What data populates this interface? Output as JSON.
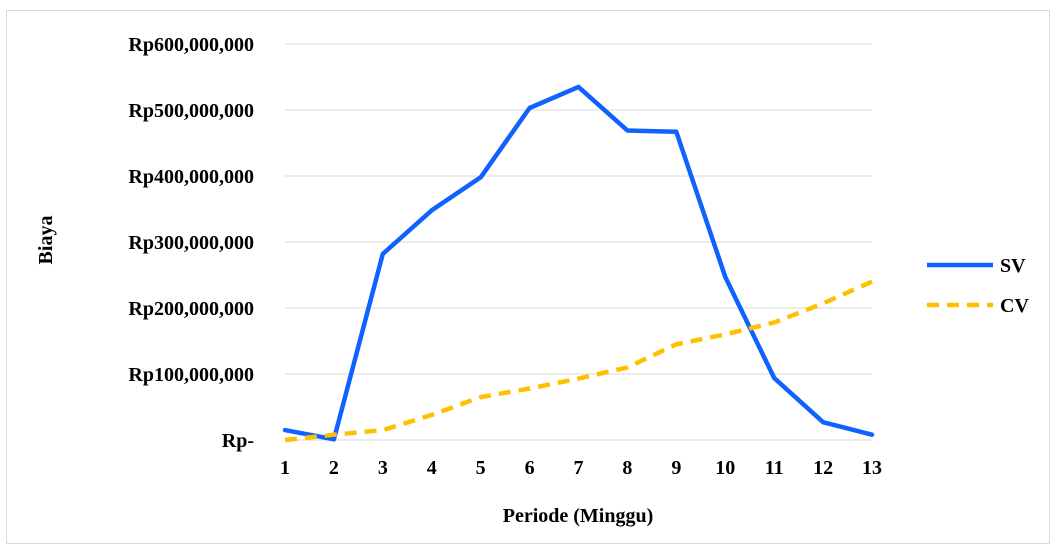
{
  "chart_data": {
    "type": "line",
    "title": "",
    "xlabel": "Periode (Minggu)",
    "ylabel": "Biaya",
    "x": [
      1,
      2,
      3,
      4,
      5,
      6,
      7,
      8,
      9,
      10,
      11,
      12,
      13
    ],
    "x_tick_labels": [
      "1",
      "2",
      "3",
      "4",
      "5",
      "6",
      "7",
      "8",
      "9",
      "10",
      "11",
      "12",
      "13"
    ],
    "y_ticks": [
      0,
      100000000,
      200000000,
      300000000,
      400000000,
      500000000,
      600000000
    ],
    "y_tick_labels": [
      "Rp-",
      "Rp100,000,000",
      "Rp200,000,000",
      "Rp300,000,000",
      "Rp400,000,000",
      "Rp500,000,000",
      "Rp600,000,000"
    ],
    "ylim": [
      0,
      600000000
    ],
    "grid": true,
    "legend_position": "right",
    "series": [
      {
        "name": "SV",
        "color": "#0f62fe",
        "style": "solid",
        "values": [
          15000000,
          1000000,
          282000000,
          348000000,
          398000000,
          503000000,
          535000000,
          469000000,
          467000000,
          247000000,
          94000000,
          27000000,
          8000000
        ]
      },
      {
        "name": "CV",
        "color": "#ffc000",
        "style": "dashed",
        "values": [
          0,
          8000000,
          15000000,
          38000000,
          65000000,
          78000000,
          93000000,
          110000000,
          145000000,
          160000000,
          178000000,
          207000000,
          240000000
        ]
      }
    ]
  }
}
